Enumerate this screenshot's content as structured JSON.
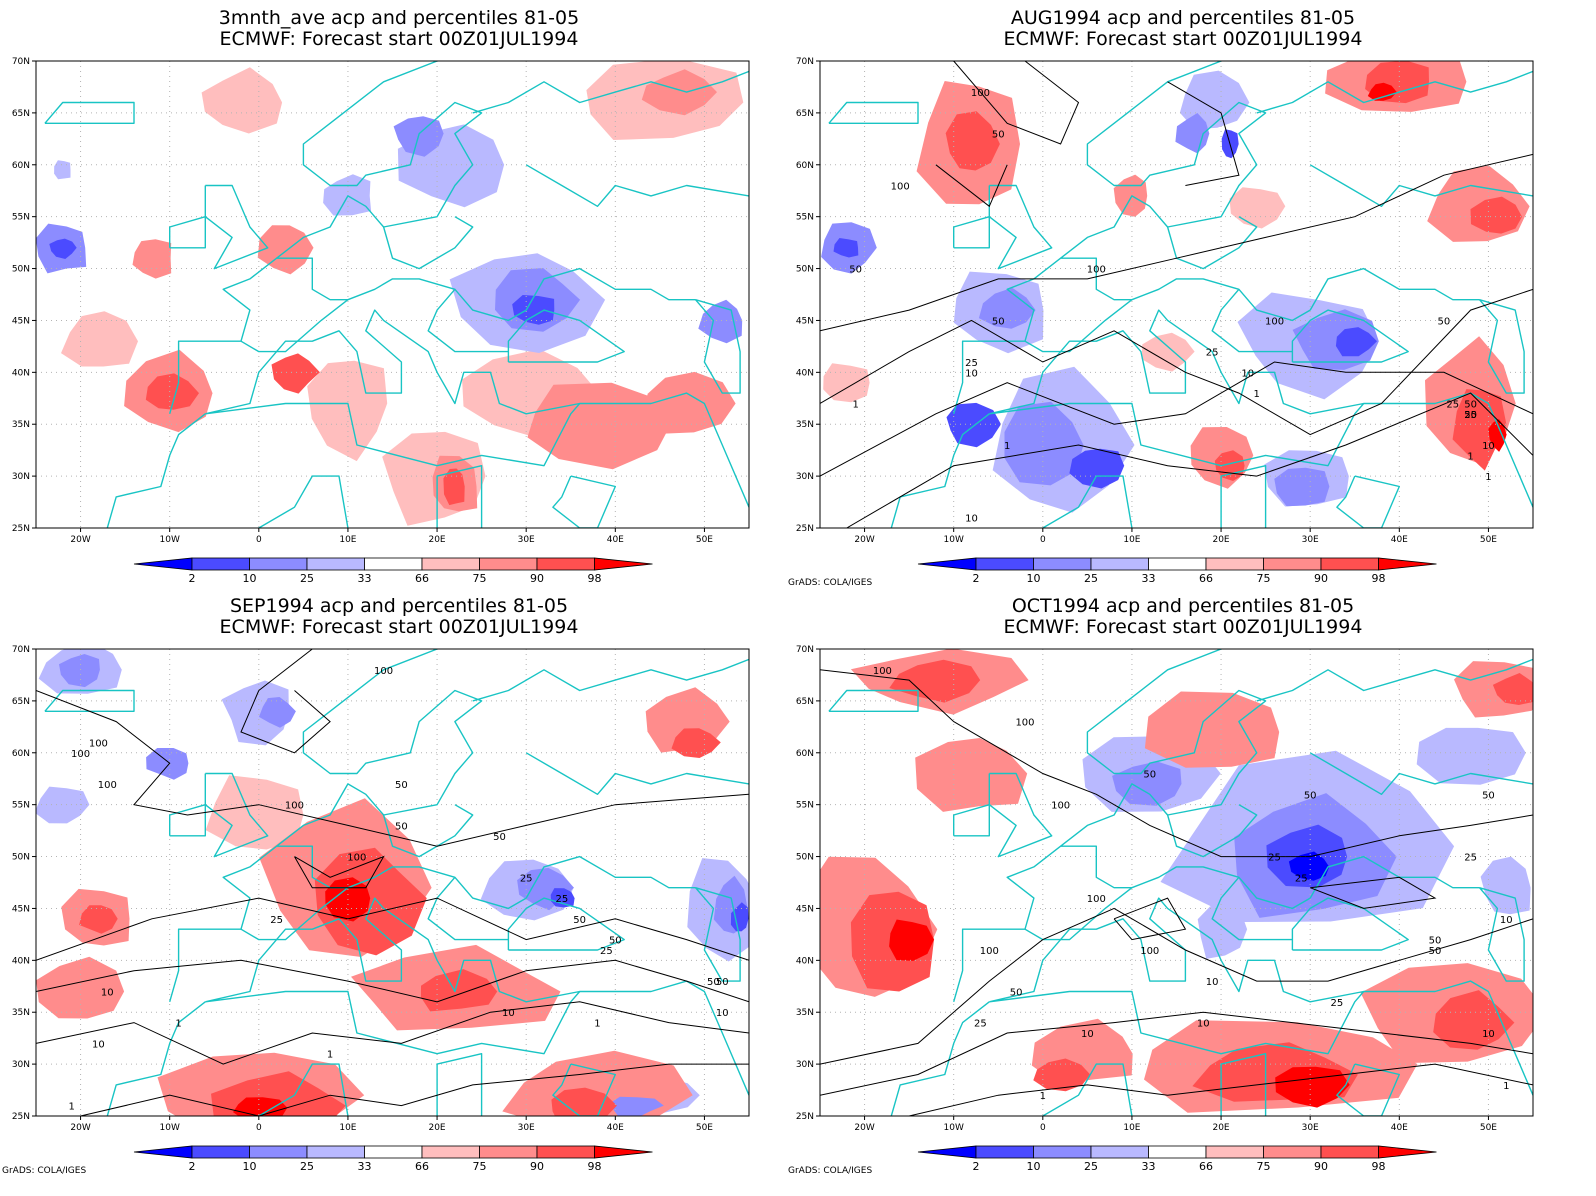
{
  "colors": {
    "coast": "#19c4c4",
    "contour": "#000000",
    "grid": "#b4b4b4",
    "bins": [
      "#0000ff",
      "#4b4bff",
      "#8c8cff",
      "#b9b9ff",
      "#ffffff",
      "#ffbebe",
      "#ff8c8c",
      "#ff5050",
      "#ff0000"
    ]
  },
  "axes": {
    "lat_labels": [
      "70N",
      "65N",
      "60N",
      "55N",
      "50N",
      "45N",
      "40N",
      "35N",
      "30N",
      "25N"
    ],
    "lon_labels": [
      "20W",
      "10W",
      "0",
      "10E",
      "20E",
      "30E",
      "40E",
      "50E"
    ]
  },
  "colorbar": {
    "labels": [
      "2",
      "10",
      "25",
      "33",
      "66",
      "75",
      "90",
      "98"
    ]
  },
  "credit": "GrADS: COLA/IGES",
  "panels": [
    {
      "title_line1": "3mnth_ave acp and percentiles 81-05",
      "title_line2": "ECMWF: Forecast start 00Z01JUL1994",
      "contour_labels": [],
      "show_credit": false
    },
    {
      "title_line1": "AUG1994 acp and percentiles 81-05",
      "title_line2": "ECMWF: Forecast start 00Z01JUL1994",
      "contour_labels": [
        "100",
        "50",
        "100",
        "100",
        "50",
        "50",
        "100",
        "50",
        "25",
        "10",
        "1",
        "1",
        "25",
        "10",
        "1",
        "10",
        "50",
        "25",
        "50",
        "25",
        "10",
        "1",
        "1"
      ],
      "show_credit": true
    },
    {
      "title_line1": "SEP1994 acp and percentiles 81-05",
      "title_line2": "ECMWF: Forecast start 00Z01JUL1994",
      "contour_labels": [
        "100",
        "100",
        "100",
        "100",
        "100",
        "50",
        "50",
        "100",
        "50",
        "25",
        "25",
        "50",
        "25",
        "10",
        "1",
        "25",
        "50",
        "10",
        "1",
        "10",
        "1",
        "1",
        "50",
        "50",
        "10"
      ],
      "show_credit": true
    },
    {
      "title_line1": "OCT1994 acp and percentiles 81-05",
      "title_line2": "ECMWF: Forecast start 00Z01JUL1994",
      "contour_labels": [
        "100",
        "100",
        "50",
        "100",
        "50",
        "50",
        "25",
        "25",
        "25",
        "100",
        "100",
        "100",
        "50",
        "25",
        "10",
        "1",
        "10",
        "10",
        "50",
        "50",
        "10",
        "25",
        "10",
        "1"
      ],
      "show_credit": true
    }
  ]
}
